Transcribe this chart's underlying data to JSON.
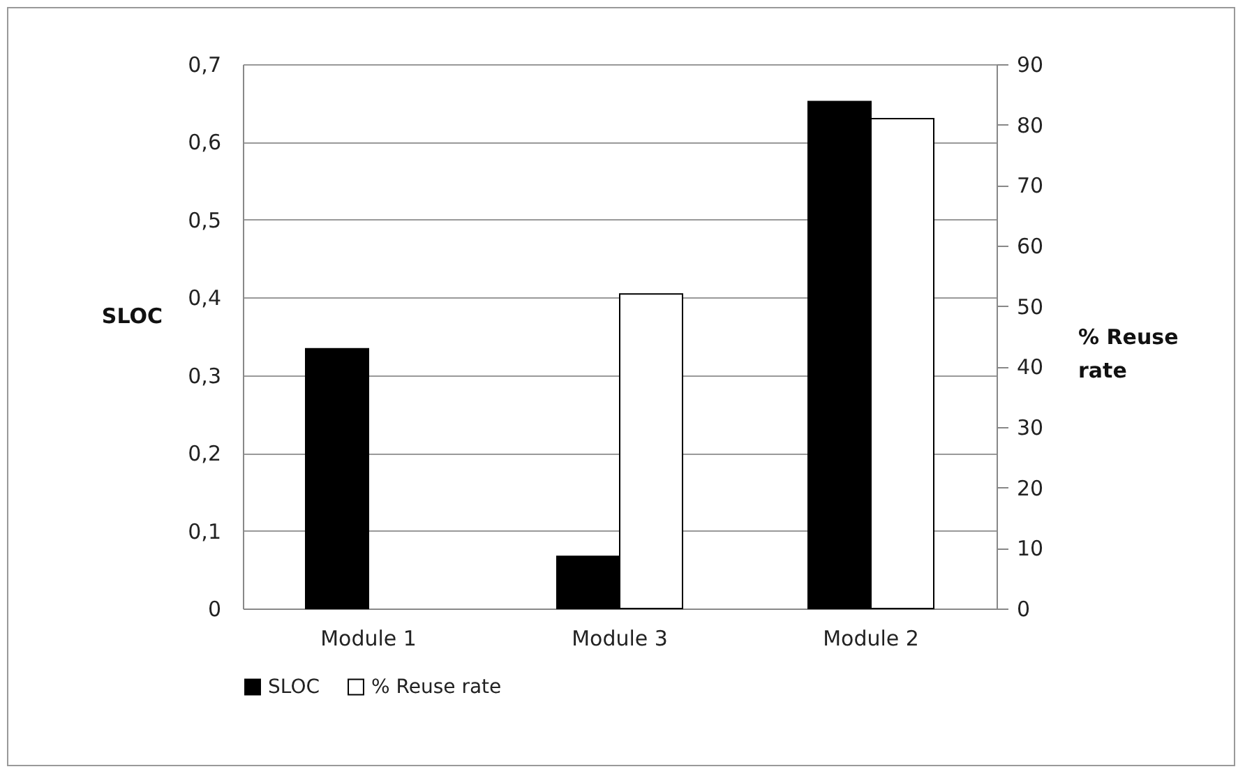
{
  "chart_data": {
    "type": "bar",
    "categories": [
      "Module 1",
      "Module 3",
      "Module 2"
    ],
    "ylabel": "SLOC",
    "y2label": "% Reuse rate",
    "series": [
      {
        "name": "SLOC",
        "color": "#000000",
        "values": [
          0.334,
          0.067,
          0.652
        ]
      },
      {
        "name": "% Reuse rate",
        "color": "#ffffff",
        "axis": "y2",
        "values": [
          null,
          52,
          81
        ]
      }
    ],
    "ylim": [
      0,
      0.7
    ],
    "yticks": [
      0,
      {
        "value": 0.1,
        "label": "0,1"
      },
      {
        "value": 0.2,
        "label": "0,2"
      },
      {
        "value": 0.3,
        "label": "0,3"
      },
      {
        "value": 0.4,
        "label": "0,4"
      },
      {
        "value": 0.5,
        "label": "0,5"
      },
      {
        "value": 0.6,
        "label": "0,6"
      },
      {
        "value": 0.7,
        "label": "0,7"
      }
    ],
    "y2lim": [
      0,
      90
    ],
    "y2ticks": [
      0,
      10,
      20,
      30,
      40,
      50,
      60,
      70,
      80,
      90
    ],
    "grid": "y",
    "legend": "bottom"
  }
}
